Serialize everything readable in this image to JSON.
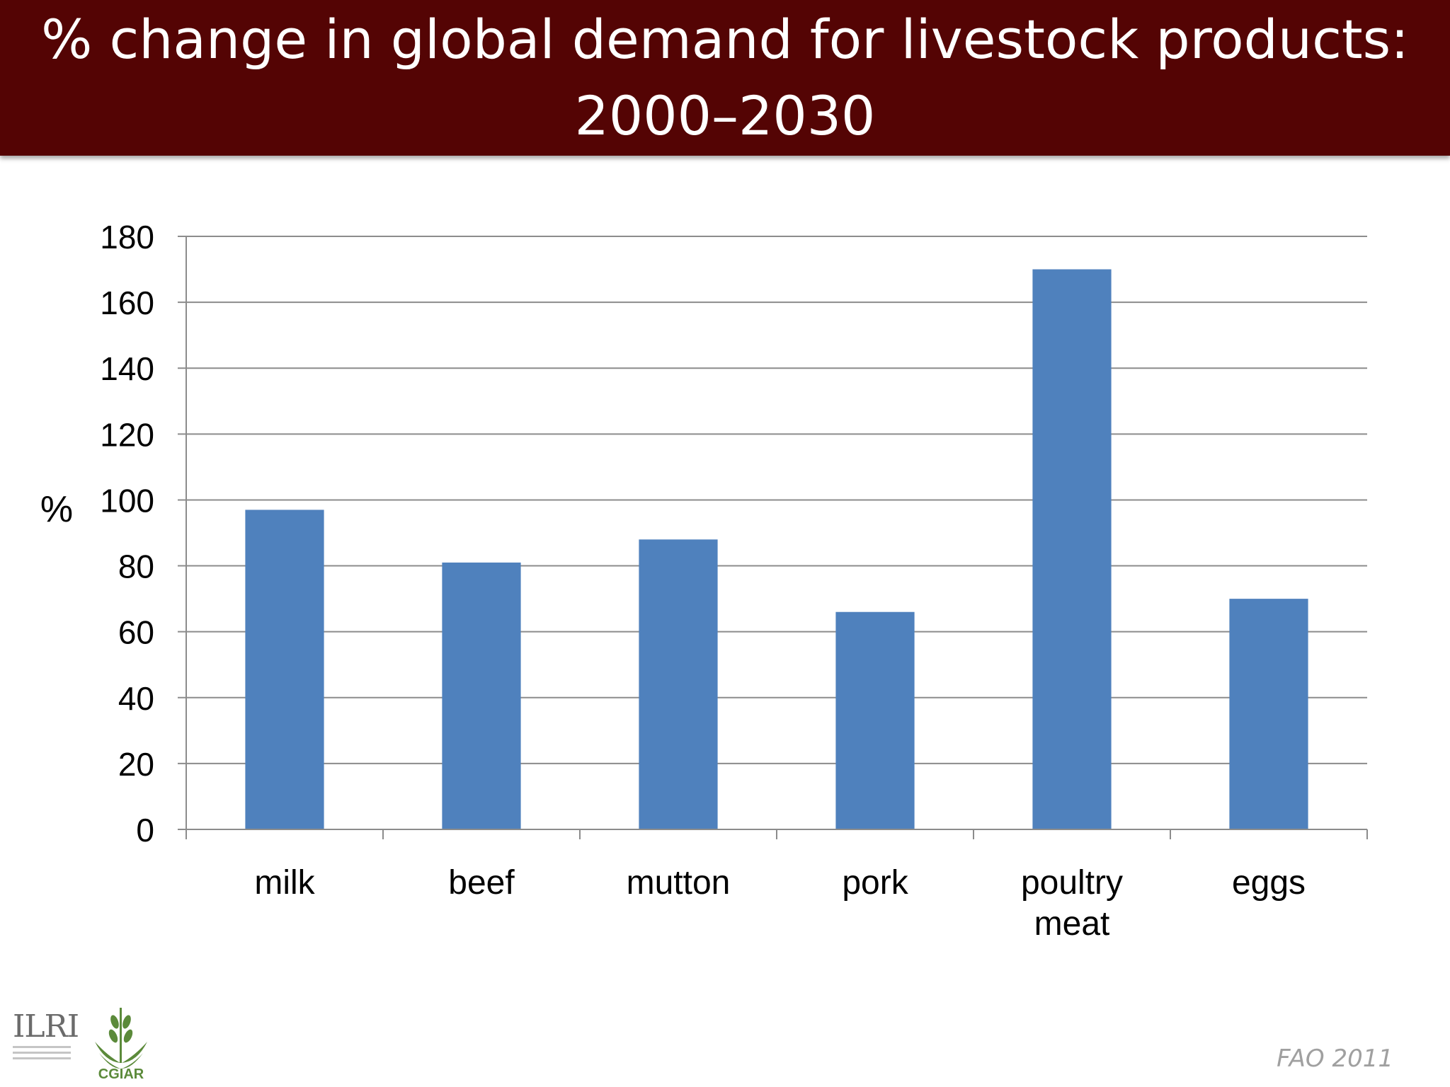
{
  "header": {
    "title_line1": "% change in global demand for livestock products:",
    "title_line2": "2000–2030"
  },
  "footer": {
    "source": "FAO 2011",
    "logo_ilri": "ILRI",
    "logo_cgiar": "CGIAR",
    "bg_color": "#540404"
  },
  "chart_data": {
    "type": "bar",
    "categories": [
      [
        "milk"
      ],
      [
        "beef"
      ],
      [
        "mutton"
      ],
      [
        "pork"
      ],
      [
        "poultry",
        "meat"
      ],
      [
        "eggs"
      ]
    ],
    "values": [
      97,
      81,
      88,
      66,
      170,
      70
    ],
    "ylabel": "%",
    "ylim": [
      0,
      180
    ],
    "yticks": [
      0,
      20,
      40,
      60,
      80,
      100,
      120,
      140,
      160,
      180
    ],
    "grid": true,
    "legend": "none",
    "bar_color": "#4f81bd"
  }
}
